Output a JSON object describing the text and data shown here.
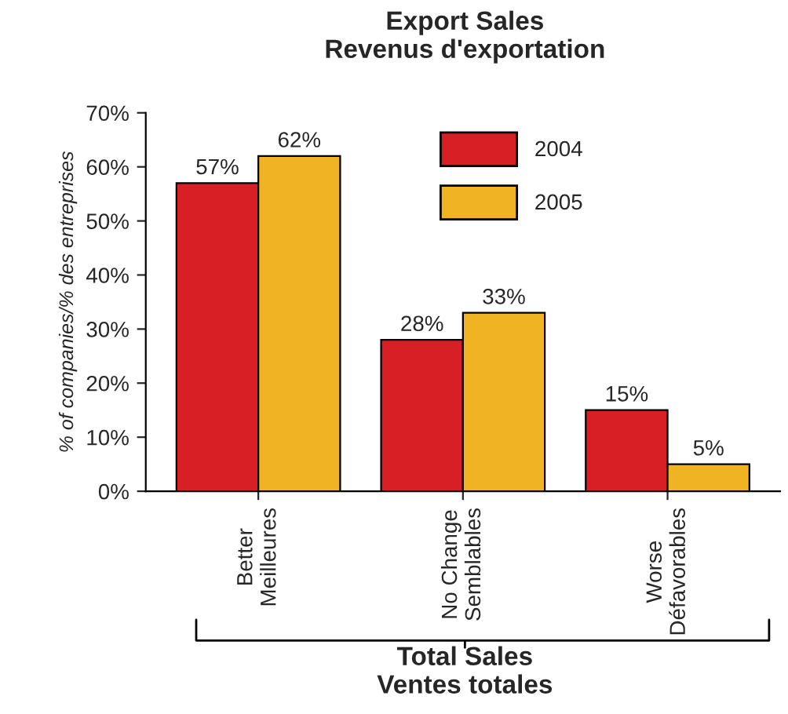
{
  "chart_data": {
    "type": "bar",
    "title": "Export Sales\nRevenus d'exportation",
    "xlabel": "Total Sales\nVentes totales",
    "ylabel": "% of companies/% des entreprises",
    "categories": [
      "Better\nMeilleures",
      "No Change\nSemblables",
      "Worse\nDéfavorables"
    ],
    "series": [
      {
        "name": "2004",
        "color": "#d91f26",
        "values": [
          57,
          28,
          15
        ],
        "value_labels": [
          "57%",
          "28%",
          "15%"
        ]
      },
      {
        "name": "2005",
        "color": "#f0b323",
        "values": [
          62,
          33,
          5
        ],
        "value_labels": [
          "62%",
          "33%",
          "5%"
        ]
      }
    ],
    "ylim": [
      0,
      70
    ],
    "yticks": [
      {
        "value": 0,
        "label": "0%"
      },
      {
        "value": 10,
        "label": "10%"
      },
      {
        "value": 20,
        "label": "20%"
      },
      {
        "value": 30,
        "label": "30%"
      },
      {
        "value": 40,
        "label": "40%"
      },
      {
        "value": 50,
        "label": "50%"
      },
      {
        "value": 60,
        "label": "60%"
      },
      {
        "value": 70,
        "label": "70%"
      }
    ],
    "legend": "top right",
    "grid": false
  }
}
